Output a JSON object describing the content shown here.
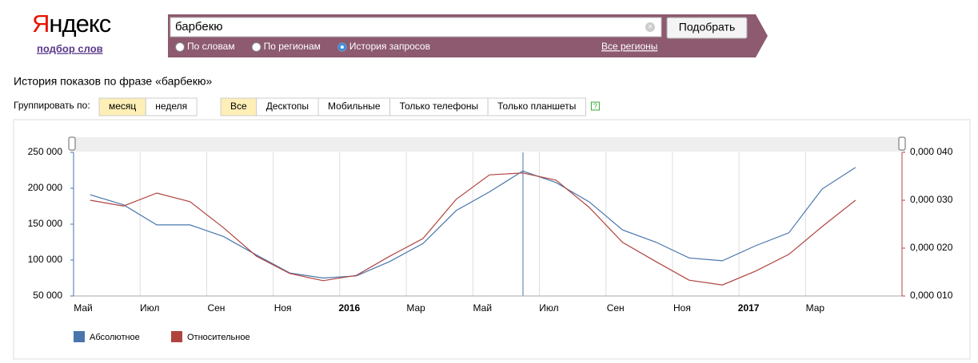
{
  "header": {
    "logo": "Яндекс",
    "subtitle": "подбор слов"
  },
  "search": {
    "query": "барбекю",
    "button": "Подобрать",
    "modes": [
      {
        "label": "По словам",
        "checked": false
      },
      {
        "label": "По регионам",
        "checked": false
      },
      {
        "label": "История запросов",
        "checked": true
      }
    ],
    "region": "Все регионы"
  },
  "history_title": "История показов по фразе «барбекю»",
  "grouping": {
    "label": "Группировать по:",
    "options": [
      {
        "label": "месяц",
        "active": true
      },
      {
        "label": "неделя",
        "active": false
      }
    ]
  },
  "devices": [
    {
      "label": "Все",
      "active": true
    },
    {
      "label": "Десктопы",
      "active": false
    },
    {
      "label": "Мобильные",
      "active": false
    },
    {
      "label": "Только телефоны",
      "active": false
    },
    {
      "label": "Только планшеты",
      "active": false
    }
  ],
  "help": "?",
  "chart_data": {
    "type": "line",
    "categories": [
      "Май",
      null,
      "Июл",
      null,
      "Сен",
      null,
      "Ноя",
      null,
      "2016",
      null,
      "Мар",
      null,
      "Май",
      null,
      "Июл",
      null,
      "Сен",
      null,
      "Ноя",
      null,
      "2017",
      null,
      "Мар",
      null
    ],
    "series": [
      {
        "name": "Абсолютное",
        "color": "#4a76ad",
        "values": [
          191000,
          177000,
          149000,
          149000,
          133000,
          107000,
          82000,
          75000,
          78000,
          98000,
          123000,
          169000,
          195000,
          224000,
          208000,
          181000,
          142000,
          125000,
          103000,
          99000,
          120000,
          138000,
          199000,
          229000
        ]
      },
      {
        "name": "Относительное",
        "color": "#b0443f",
        "axis": "y2",
        "values": [
          3e-05,
          2.88e-05,
          3.15e-05,
          2.97e-05,
          2.43e-05,
          1.83e-05,
          1.47e-05,
          1.32e-05,
          1.43e-05,
          1.83e-05,
          2.2e-05,
          3.02e-05,
          3.53e-05,
          3.57e-05,
          3.42e-05,
          2.85e-05,
          2.12e-05,
          1.72e-05,
          1.33e-05,
          1.23e-05,
          1.52e-05,
          1.87e-05,
          2.45e-05,
          3e-05
        ]
      }
    ],
    "ylim": [
      50000,
      250000
    ],
    "yticks": [
      {
        "value": 50000,
        "label": "50 000"
      },
      {
        "value": 100000,
        "label": "100 000"
      },
      {
        "value": 150000,
        "label": "150 000"
      },
      {
        "value": 200000,
        "label": "200 000"
      },
      {
        "value": 250000,
        "label": "250 000"
      }
    ],
    "y2lim": [
      1e-05,
      4e-05
    ],
    "y2ticks": [
      {
        "value": 1e-05,
        "label": "0,000 010"
      },
      {
        "value": 2e-05,
        "label": "0,000 020"
      },
      {
        "value": 3e-05,
        "label": "0,000 030"
      },
      {
        "value": 4e-05,
        "label": "0,000 040"
      }
    ],
    "grid": true
  }
}
